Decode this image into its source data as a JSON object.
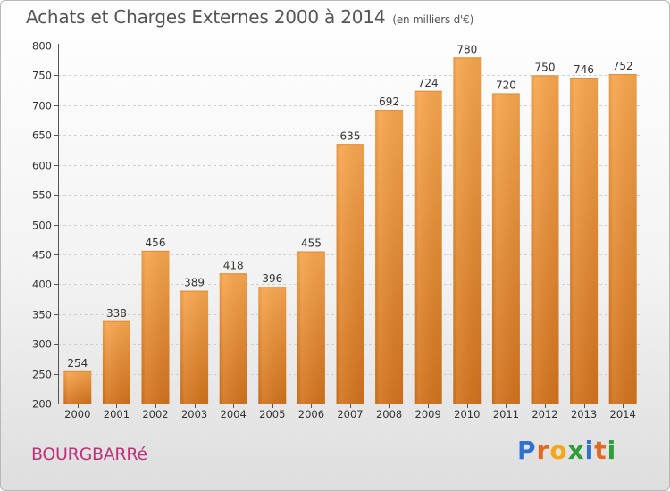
{
  "header": {
    "title": "Achats et Charges Externes 2000 à 2014",
    "subtitle": "(en milliers d'€)"
  },
  "footer": {
    "town": "BOURGBARRé",
    "logo_letters": [
      {
        "ch": "P",
        "color": "#2e6fd0"
      },
      {
        "ch": "r",
        "color": "#e8671e"
      },
      {
        "ch": "o",
        "color": "#f2a81a"
      },
      {
        "ch": "x",
        "color": "#2f9e3a"
      },
      {
        "ch": "i",
        "color": "#2e6fd0"
      },
      {
        "ch": "t",
        "color": "#e8671e"
      },
      {
        "ch": "i",
        "color": "#2f9e3a"
      }
    ]
  },
  "colors": {
    "bar_top": "#f7a64e",
    "bar_bottom": "#d2731d",
    "grid": "#cfcfcf",
    "axis": "#555555"
  },
  "chart_data": {
    "type": "bar",
    "title": "Achats et Charges Externes 2000 à 2014",
    "subtitle": "(en milliers d'€)",
    "categories": [
      "2000",
      "2001",
      "2002",
      "2003",
      "2004",
      "2005",
      "2006",
      "2007",
      "2008",
      "2009",
      "2010",
      "2011",
      "2012",
      "2013",
      "2014"
    ],
    "values": [
      254,
      338,
      456,
      389,
      418,
      396,
      455,
      635,
      692,
      724,
      780,
      720,
      750,
      746,
      752
    ],
    "ylim": [
      200,
      800
    ],
    "yticks": [
      200,
      250,
      300,
      350,
      400,
      450,
      500,
      550,
      600,
      650,
      700,
      750,
      800
    ],
    "grid": true,
    "xlabel": "",
    "ylabel": ""
  }
}
